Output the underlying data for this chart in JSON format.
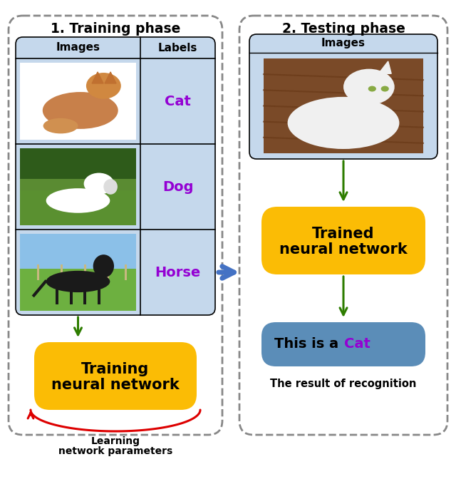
{
  "title_left": "1. Training phase",
  "title_right": "2. Testing phase",
  "label_cat": "Cat",
  "label_dog": "Dog",
  "label_horse": "Horse",
  "label_images": "Images",
  "label_labels": "Labels",
  "label_images_right": "Images",
  "label_training_nn_line1": "Training",
  "label_training_nn_line2": "neural network",
  "label_trained_nn_line1": "Trained",
  "label_trained_nn_line2": "neural network",
  "label_result_prefix": "This is a ",
  "label_result_word": "Cat",
  "label_learning_line1": "Learning",
  "label_learning_line2": "network parameters",
  "label_recognition": "The result of recognition",
  "color_blue_panel": "#B8CEE8",
  "color_table_bg": "#C5D8EC",
  "color_orange": "#FBBC05",
  "color_steel_blue": "#5B8DB8",
  "color_purple": "#9400D3",
  "color_green_arrow": "#2E7D00",
  "color_red_arrow": "#DD0000",
  "color_blue_arrow": "#4472C4",
  "color_black": "#000000",
  "color_white": "#FFFFFF",
  "color_dashed_border": "#888888",
  "color_cat_bg": "#F5F0E8",
  "color_cat_body": "#C8874A",
  "color_dog_bg": "#4A6B2A",
  "color_dog_grass": "#5A8032",
  "color_dog_body": "#FFFFFF",
  "color_horse_bg": "#6AAA40",
  "color_horse_sky": "#BDD8F0",
  "color_horse_body": "#1A1A1A",
  "color_wcat_wood": "#8B5E3C",
  "color_wcat_body": "#F0F0F0"
}
